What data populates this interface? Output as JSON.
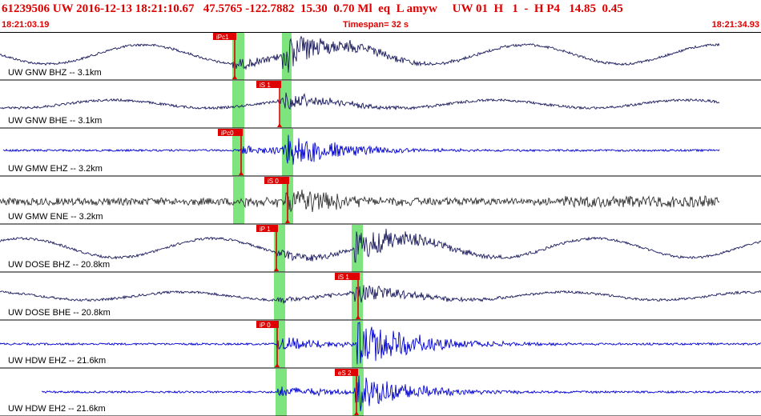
{
  "header": {
    "event_id": "61239506",
    "network": "UW",
    "datetime": "2016-12-13 18:21:10.67",
    "lat": "47.5765",
    "lon": "-122.7882",
    "depth": "15.30",
    "magnitude": "0.70 Ml",
    "etype": "eq",
    "gtype": "L",
    "source": "amyw",
    "auth": "UW 01",
    "h_flag": "H",
    "num1": "1",
    "dash": "-",
    "hp": "H P4",
    "val1": "14.85",
    "val2": "0.45",
    "start_time": "18:21:03.19",
    "timespan_label": "Timespan=",
    "timespan_value": "32 s",
    "end_time": "18:21:34.93"
  },
  "colors": {
    "header_text": "#e00000",
    "pick_flag": "#e00000",
    "window_highlight": "#7ee57e",
    "trace_dark": "#1a1a5e",
    "trace_blue": "#0000d0",
    "trace_gray": "#333333"
  },
  "traces": [
    {
      "label": "UW GNW BHZ -- 3.1km",
      "pick": "iPc1",
      "color_key": "trace_dark",
      "kind": "long"
    },
    {
      "label": "UW GNW BHE -- 3.1km",
      "pick": "iS 1",
      "color_key": "trace_dark",
      "kind": "long_small"
    },
    {
      "label": "UW GMW EHZ -- 3.2km",
      "pick": "iPc0",
      "color_key": "trace_blue",
      "kind": "short"
    },
    {
      "label": "UW GMW ENE -- 3.2km",
      "pick": "iS 0",
      "color_key": "trace_gray",
      "kind": "noisy"
    },
    {
      "label": "UW DOSE BHZ -- 20.8km",
      "pick": "iP 1",
      "color_key": "trace_dark",
      "kind": "long"
    },
    {
      "label": "UW DOSE BHE -- 20.8km",
      "pick": "iS 1",
      "color_key": "trace_dark",
      "kind": "long_small"
    },
    {
      "label": "UW HDW EHZ -- 21.6km",
      "pick": "iP 0",
      "color_key": "trace_blue",
      "kind": "short"
    },
    {
      "label": "UW HDW EH2 -- 21.6km",
      "pick": "eS 2",
      "color_key": "trace_blue",
      "kind": "short"
    }
  ]
}
